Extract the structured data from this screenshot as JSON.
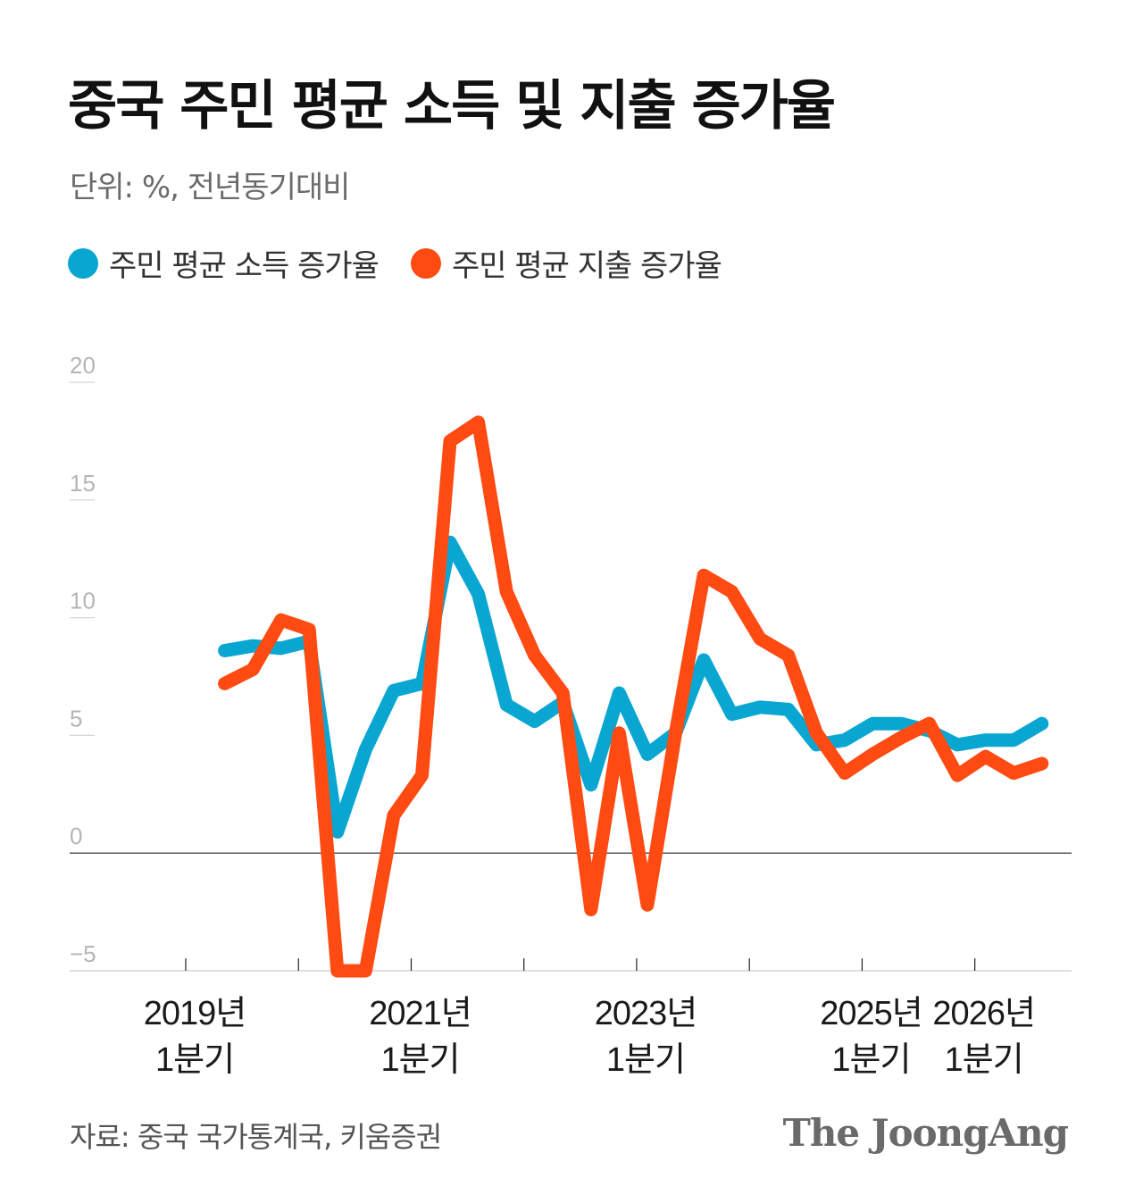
{
  "title": "중국 주민 평균 소득 및 지출 증가율",
  "subtitle": "단위: %, 전년동기대비",
  "source": "자료: 중국 국가통계국, 키움증권",
  "brand": "The JoongAng",
  "colors": {
    "income": "#0aa6d2",
    "spending": "#ff4a12",
    "axis": "#222222",
    "grid": "#d5d5d5",
    "tick_text": "#b5b5b5"
  },
  "chart_data": {
    "type": "line",
    "x": [
      "2019Q1",
      "2019Q2",
      "2019Q3",
      "2019Q4",
      "2020Q1",
      "2020Q2",
      "2020Q3",
      "2020Q4",
      "2021Q1",
      "2021Q2",
      "2021Q3",
      "2021Q4",
      "2022Q1",
      "2022Q2",
      "2022Q3",
      "2022Q4",
      "2023Q1",
      "2023Q2",
      "2023Q3",
      "2023Q4",
      "2024Q1",
      "2024Q2",
      "2024Q3",
      "2024Q4",
      "2025Q1",
      "2025Q2",
      "2025Q3",
      "2025Q4",
      "2026Q1"
    ],
    "x_tick_labels": [
      {
        "x": "2019Q1",
        "lines": [
          "2019년",
          "1분기"
        ]
      },
      {
        "x": "2021Q1",
        "lines": [
          "2021년",
          "1분기"
        ]
      },
      {
        "x": "2023Q1",
        "lines": [
          "2023년",
          "1분기"
        ]
      },
      {
        "x": "2025Q1",
        "lines": [
          "2025년",
          "1분기"
        ]
      },
      {
        "x": "2026Q1",
        "lines": [
          "2026년",
          "1분기"
        ]
      }
    ],
    "x_tick_marks": [
      "2019Q1",
      "2020Q1",
      "2021Q1",
      "2022Q1",
      "2023Q1",
      "2024Q1",
      "2025Q1",
      "2026Q1"
    ],
    "y_ticks": [
      20,
      15,
      10,
      5,
      0,
      -5
    ],
    "y_tick_labels": [
      "20",
      "15",
      "10",
      "5",
      "0",
      "−5"
    ],
    "ylim": [
      -5,
      20
    ],
    "series": [
      {
        "name": "주민 평균 소득 증가율",
        "color": "#0aa6d2",
        "points": [
          [
            "2019Q2",
            8.6
          ],
          [
            "2019Q3",
            8.8
          ],
          [
            "2019Q4",
            8.7
          ],
          [
            "2020Q1",
            9.0
          ],
          [
            "2020Q2",
            0.9
          ],
          [
            "2020Q3",
            4.4
          ],
          [
            "2020Q4",
            6.9
          ],
          [
            "2021Q1",
            7.2
          ],
          [
            "2021Q2",
            13.2
          ],
          [
            "2021Q3",
            11.0
          ],
          [
            "2021Q4",
            6.3
          ],
          [
            "2022Q1",
            5.6
          ],
          [
            "2022Q2",
            6.4
          ],
          [
            "2022Q3",
            2.9
          ],
          [
            "2022Q4",
            6.8
          ],
          [
            "2023Q1",
            4.2
          ],
          [
            "2023Q2",
            5.1
          ],
          [
            "2023Q3",
            8.2
          ],
          [
            "2023Q4",
            5.9
          ],
          [
            "2024Q1",
            6.2
          ],
          [
            "2024Q2",
            6.1
          ],
          [
            "2024Q3",
            4.6
          ],
          [
            "2024Q4",
            4.8
          ],
          [
            "2025Q1",
            5.5
          ],
          [
            "2025Q2",
            5.5
          ],
          [
            "2025Q3",
            5.2
          ],
          [
            "2025Q4",
            4.6
          ],
          [
            "2026Q1",
            4.8
          ],
          [
            "2026Q2",
            4.8
          ],
          [
            "2026Q3",
            5.5
          ]
        ]
      },
      {
        "name": "주민 평균 지출 증가율",
        "color": "#ff4a12",
        "points": [
          [
            "2019Q2",
            7.2
          ],
          [
            "2019Q3",
            7.8
          ],
          [
            "2019Q4",
            9.9
          ],
          [
            "2020Q1",
            9.5
          ],
          [
            "2020Q2",
            -5.0
          ],
          [
            "2020Q3",
            -5.0
          ],
          [
            "2020Q4",
            1.6
          ],
          [
            "2021Q1",
            3.3
          ],
          [
            "2021Q2",
            17.5
          ],
          [
            "2021Q3",
            18.3
          ],
          [
            "2021Q4",
            11.1
          ],
          [
            "2022Q1",
            8.4
          ],
          [
            "2022Q2",
            6.8
          ],
          [
            "2022Q3",
            -2.4
          ],
          [
            "2022Q4",
            5.1
          ],
          [
            "2023Q1",
            -2.2
          ],
          [
            "2023Q2",
            5.1
          ],
          [
            "2023Q3",
            11.8
          ],
          [
            "2023Q4",
            11.1
          ],
          [
            "2024Q1",
            9.1
          ],
          [
            "2024Q2",
            8.4
          ],
          [
            "2024Q3",
            5.1
          ],
          [
            "2024Q4",
            3.4
          ],
          [
            "2025Q1",
            4.2
          ],
          [
            "2025Q2",
            4.9
          ],
          [
            "2025Q3",
            5.5
          ],
          [
            "2025Q4",
            3.3
          ],
          [
            "2026Q1",
            4.1
          ],
          [
            "2026Q2",
            3.4
          ],
          [
            "2026Q3",
            3.8
          ]
        ]
      }
    ],
    "legend_position": "top-left",
    "grid": "horizontal"
  }
}
